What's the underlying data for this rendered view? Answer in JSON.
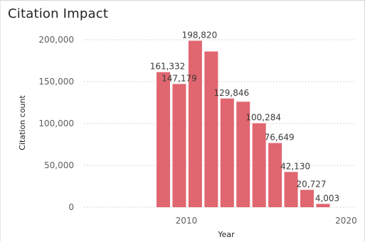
{
  "card": {
    "title": "Citation Impact"
  },
  "chart_data": {
    "type": "bar",
    "title": "Citation Impact",
    "xlabel": "Year",
    "ylabel": "Citation count",
    "categories": [
      2009,
      2010,
      2011,
      2012,
      2013,
      2014,
      2015,
      2016,
      2017,
      2018,
      2019,
      2020
    ],
    "values": [
      161332,
      147179,
      198820,
      186000,
      129846,
      126000,
      100284,
      76649,
      42130,
      20727,
      4003,
      0
    ],
    "data_labels": [
      "161,332",
      "147,179",
      "198,820",
      "",
      "129,846",
      "",
      "100,284",
      "76,649",
      "42,130",
      "20,727",
      "4,003",
      ""
    ],
    "x_tick_labels": [
      "2010",
      "2020"
    ],
    "y_ticks": [
      "0",
      "50,000",
      "100,000",
      "150,000",
      "200,000"
    ],
    "y_tick_values": [
      0,
      50000,
      100000,
      150000,
      200000
    ],
    "ylim": [
      0,
      200000
    ],
    "grid": true,
    "bar_color": "#e06670",
    "grid_color": "#c8c6c4"
  }
}
